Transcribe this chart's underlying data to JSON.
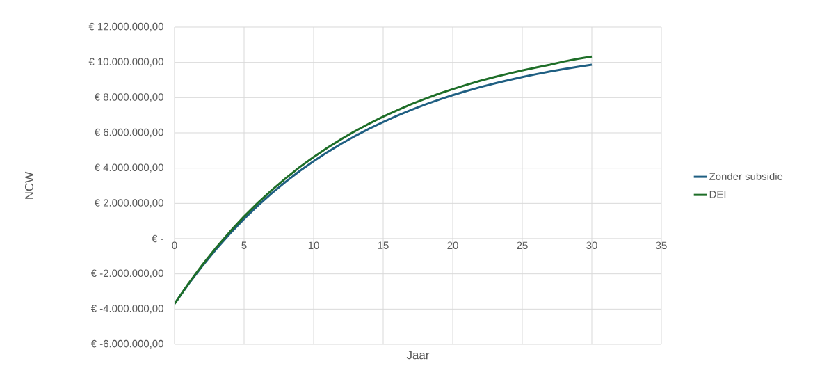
{
  "chart_data": {
    "type": "line",
    "xlabel": "Jaar",
    "ylabel": "NCW",
    "x": [
      0,
      1,
      2,
      3,
      4,
      5,
      6,
      7,
      8,
      9,
      10,
      11,
      12,
      13,
      14,
      15,
      16,
      17,
      18,
      19,
      20,
      21,
      22,
      23,
      24,
      25,
      26,
      27,
      28,
      29,
      30
    ],
    "series": [
      {
        "name": "Zonder subsidie",
        "color": "#1f5f82",
        "values": [
          -3700000,
          -2580000,
          -1550000,
          -590000,
          300000,
          1120000,
          1880000,
          2580000,
          3230000,
          3840000,
          4390000,
          4910000,
          5390000,
          5830000,
          6240000,
          6620000,
          6970000,
          7300000,
          7600000,
          7880000,
          8140000,
          8380000,
          8600000,
          8800000,
          8990000,
          9170000,
          9330000,
          9480000,
          9620000,
          9750000,
          9870000
        ]
      },
      {
        "name": "DEI",
        "color": "#1e6e28",
        "values": [
          -3700000,
          -2550000,
          -1490000,
          -500000,
          410000,
          1260000,
          2040000,
          2760000,
          3430000,
          4060000,
          4630000,
          5160000,
          5650000,
          6110000,
          6530000,
          6920000,
          7280000,
          7620000,
          7930000,
          8220000,
          8480000,
          8730000,
          8960000,
          9170000,
          9360000,
          9540000,
          9710000,
          9870000,
          10050000,
          10200000,
          10330000
        ]
      }
    ],
    "xlim": [
      0,
      35
    ],
    "xticks": [
      0,
      5,
      10,
      15,
      20,
      25,
      30,
      35
    ],
    "ylim": [
      -6000000,
      12000000
    ],
    "yticks": [
      {
        "value": -6000000,
        "label": "€ -6.000.000,00"
      },
      {
        "value": -4000000,
        "label": "€ -4.000.000,00"
      },
      {
        "value": -2000000,
        "label": "€ -2.000.000,00"
      },
      {
        "value": 0,
        "label": "€ -"
      },
      {
        "value": 2000000,
        "label": "€ 2.000.000,00"
      },
      {
        "value": 4000000,
        "label": "€ 4.000.000,00"
      },
      {
        "value": 6000000,
        "label": "€ 6.000.000,00"
      },
      {
        "value": 8000000,
        "label": "€ 8.000.000,00"
      },
      {
        "value": 10000000,
        "label": "€ 10.000.000,00"
      },
      {
        "value": 12000000,
        "label": "€ 12.000.000,00"
      }
    ],
    "grid": true,
    "legend": "right",
    "marker": "none",
    "line_style": "solid"
  }
}
